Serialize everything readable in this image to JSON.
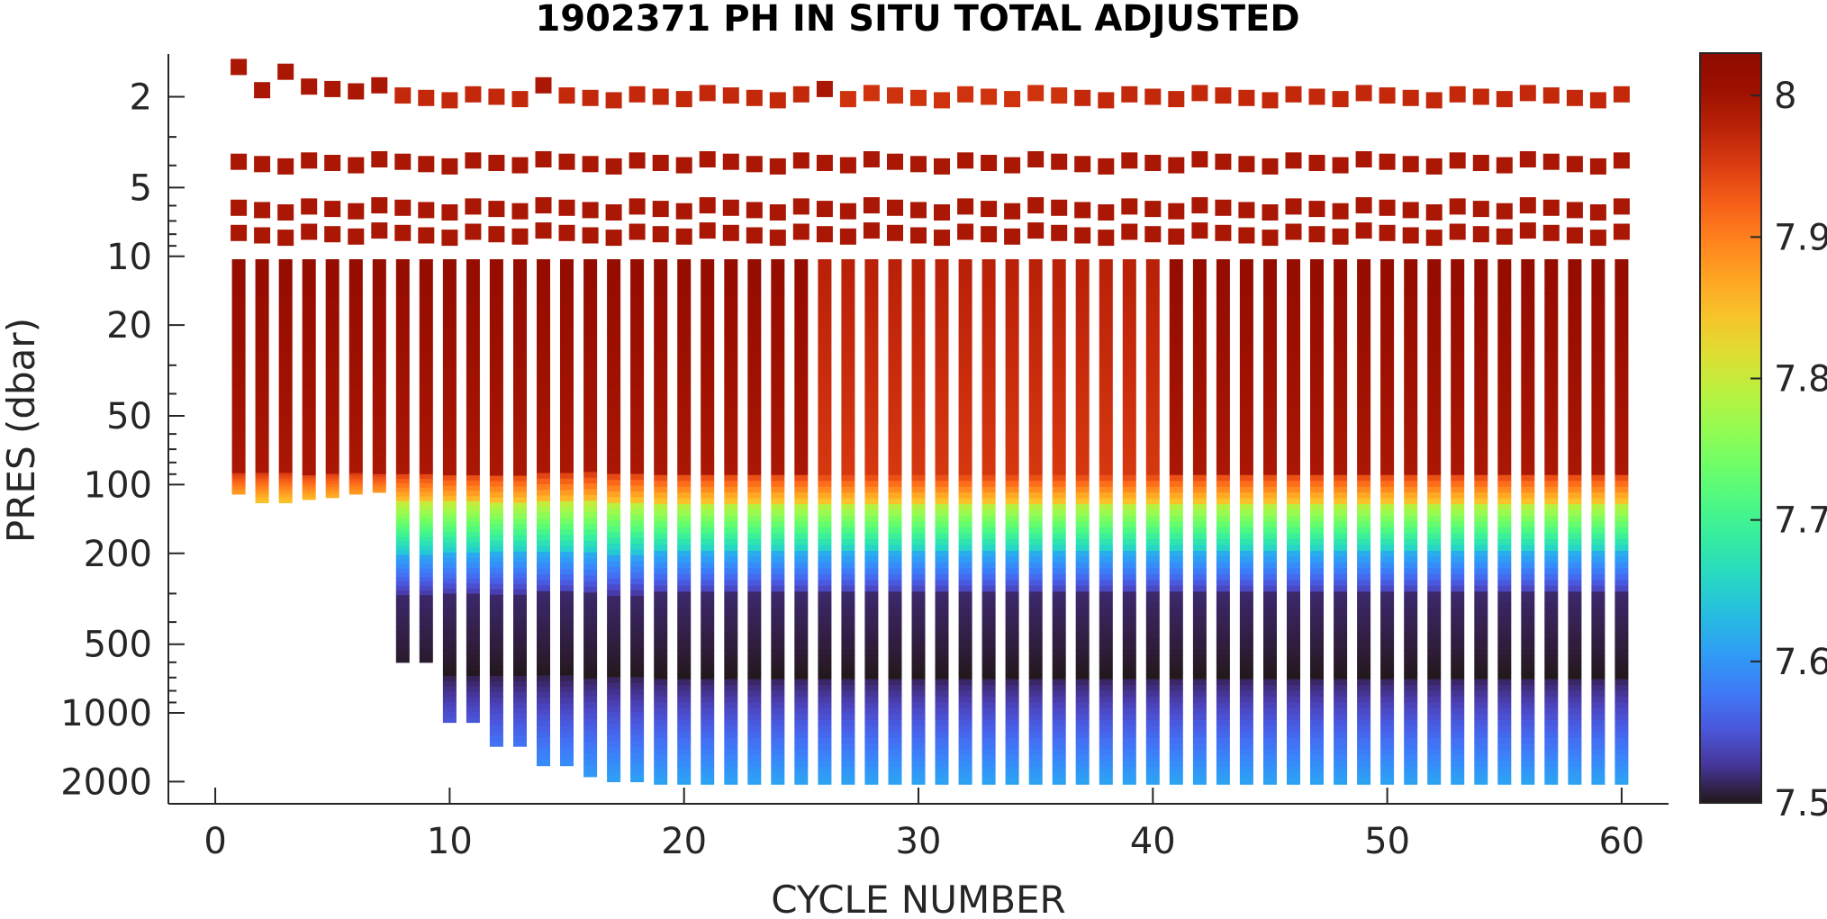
{
  "chart_data": {
    "type": "heatmap",
    "title": "1902371  PH IN SITU TOTAL ADJUSTED",
    "xlabel": "CYCLE NUMBER",
    "ylabel": "PRES (dbar)",
    "xlim": [
      -2,
      62
    ],
    "ylim": [
      2500,
      1.3
    ],
    "y_scale": "log",
    "y_direction": "reversed",
    "x_ticks": [
      0,
      10,
      20,
      30,
      40,
      50,
      60
    ],
    "x_tick_labels": [
      "0",
      "10",
      "20",
      "30",
      "40",
      "50",
      "60"
    ],
    "y_ticks": [
      2,
      5,
      10,
      20,
      50,
      100,
      200,
      500,
      1000,
      2000
    ],
    "y_tick_labels": [
      "2",
      "5",
      "10",
      "20",
      "50",
      "100",
      "200",
      "500",
      "1000",
      "2000"
    ],
    "grid": false,
    "colorbar": {
      "label": "",
      "colormap": "turbo",
      "range": [
        7.5,
        8.03
      ],
      "ticks": [
        7.5,
        7.6,
        7.7,
        7.8,
        7.9,
        8.0
      ],
      "tick_labels": [
        "7.5",
        "7.6",
        "7.7",
        "7.8",
        "7.9",
        "8"
      ]
    },
    "cycles": {
      "first": 1,
      "last": 60
    },
    "max_pressure_by_cycle": [
      110,
      120,
      120,
      116,
      114,
      110,
      108,
      600,
      600,
      1100,
      1100,
      1400,
      1400,
      1700,
      1700,
      1900,
      2000,
      2000,
      2050,
      2050,
      2050,
      2050,
      2050,
      2050,
      2050,
      2050,
      2050,
      2050,
      2050,
      2050,
      2050,
      2050,
      2050,
      2050,
      2050,
      2050,
      2050,
      2050,
      2050,
      2050,
      2050,
      2050,
      2050,
      2050,
      2050,
      2050,
      2050,
      2050,
      2050,
      2050,
      2050,
      2050,
      2050,
      2050,
      2050,
      2050,
      2050,
      2050,
      2050,
      2050
    ],
    "near_surface_samples": [
      {
        "pressure": 1.5,
        "cycles": [
          1,
          3
        ],
        "ph": 7.99
      },
      {
        "pressure": 1.85,
        "cycles": [
          2,
          4,
          5,
          6,
          7,
          14,
          26
        ],
        "ph": 7.99
      },
      {
        "pressure": 2.0,
        "cycles": "all other cycles",
        "ph": 7.97
      },
      {
        "pressure": 3.9,
        "cycles": "all",
        "ph": 7.99
      },
      {
        "pressure": 6.2,
        "cycles": "all",
        "ph": 7.99
      },
      {
        "pressure": 8.0,
        "cycles": "all",
        "ph": 7.99
      }
    ],
    "profile_structure": [
      {
        "pressure_range": [
          9,
          90
        ],
        "ph_range": [
          7.97,
          8.02
        ]
      },
      {
        "pressure_range": [
          90,
          120
        ],
        "ph_range": [
          7.85,
          7.95
        ]
      },
      {
        "pressure_range": [
          120,
          200
        ],
        "ph_range": [
          7.65,
          7.8
        ]
      },
      {
        "pressure_range": [
          200,
          300
        ],
        "ph_range": [
          7.55,
          7.62
        ]
      },
      {
        "pressure_range": [
          300,
          700
        ],
        "ph_range": [
          7.5,
          7.52
        ]
      },
      {
        "pressure_range": [
          700,
          2000
        ],
        "ph_range": [
          7.53,
          7.62
        ]
      }
    ]
  }
}
